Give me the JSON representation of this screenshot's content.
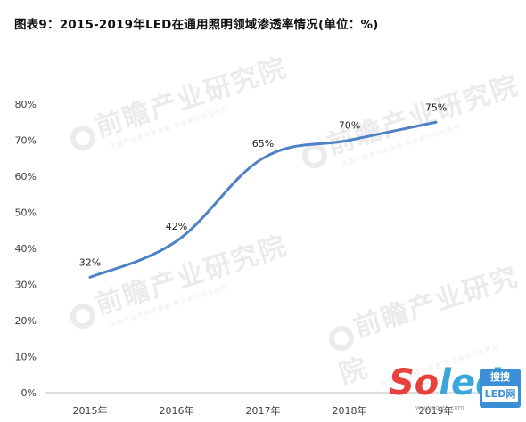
{
  "chart_data": {
    "type": "line",
    "title": "图表9：2015-2019年LED在通用照明领域渗透率情况(单位：%)",
    "categories": [
      "2015年",
      "2016年",
      "2017年",
      "2018年",
      "2019年"
    ],
    "series": [
      {
        "values": [
          32,
          42,
          65,
          70,
          75
        ],
        "labels": [
          "32%",
          "42%",
          "65%",
          "70%",
          "75%"
        ],
        "color": "#4f81c7"
      }
    ],
    "y_ticks": [
      "0%",
      "10%",
      "20%",
      "30%",
      "40%",
      "50%",
      "60%",
      "70%",
      "80%"
    ],
    "ylim": [
      0,
      80
    ],
    "grid": false,
    "legend": "none"
  },
  "watermark": {
    "text": "前瞻产业研究院",
    "subtext": "中国产业咨询领导者·专注细分行业研究"
  },
  "logo": {
    "word_red": "So",
    "word_blue": "led",
    "badge_top": "搜搜",
    "badge_bottom": "LED网",
    "url": "www.soled.com"
  },
  "colors": {
    "line": "#4f81c7",
    "axis": "#bfbfbf",
    "text": "#404040"
  }
}
